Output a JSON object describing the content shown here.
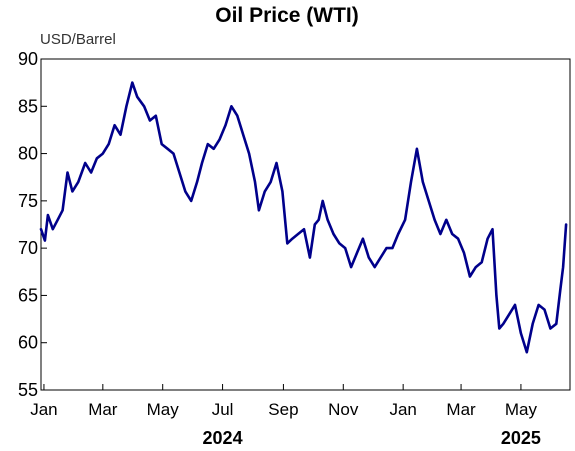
{
  "chart_data": {
    "type": "line",
    "title": "Oil Price (WTI)",
    "ylabel": "USD/Barrel",
    "xlabel": "",
    "ylim": [
      55,
      90
    ],
    "yticks": [
      "55",
      "60",
      "65",
      "70",
      "75",
      "80",
      "85",
      "90"
    ],
    "xlim": [
      "2023-12-29",
      "2025-06-20"
    ],
    "x_tick_labels": [
      {
        "label": "Jan",
        "date": "2024-01-01"
      },
      {
        "label": "Mar",
        "date": "2024-03-01"
      },
      {
        "label": "May",
        "date": "2024-05-01"
      },
      {
        "label": "Jul",
        "date": "2024-07-01"
      },
      {
        "label": "Sep",
        "date": "2024-09-01"
      },
      {
        "label": "Nov",
        "date": "2024-11-01"
      },
      {
        "label": "Jan",
        "date": "2025-01-01"
      },
      {
        "label": "Mar",
        "date": "2025-03-01"
      },
      {
        "label": "May",
        "date": "2025-05-01"
      }
    ],
    "year_labels": [
      {
        "label": "2024",
        "date": "2024-07-01"
      },
      {
        "label": "2025",
        "date": "2025-05-01"
      }
    ],
    "grid": false,
    "line_color": "#00008B",
    "series": [
      {
        "x": [
          "2023-12-29",
          "2024-01-02",
          "2024-01-05",
          "2024-01-10",
          "2024-01-15",
          "2024-01-20",
          "2024-01-25",
          "2024-01-30",
          "2024-02-05",
          "2024-02-12",
          "2024-02-18",
          "2024-02-24",
          "2024-03-01",
          "2024-03-07",
          "2024-03-13",
          "2024-03-19",
          "2024-03-25",
          "2024-03-31",
          "2024-04-05",
          "2024-04-12",
          "2024-04-18",
          "2024-04-24",
          "2024-04-30",
          "2024-05-06",
          "2024-05-12",
          "2024-05-18",
          "2024-05-24",
          "2024-05-30",
          "2024-06-05",
          "2024-06-10",
          "2024-06-16",
          "2024-06-22",
          "2024-06-28",
          "2024-07-04",
          "2024-07-10",
          "2024-07-16",
          "2024-07-22",
          "2024-07-28",
          "2024-08-03",
          "2024-08-07",
          "2024-08-13",
          "2024-08-19",
          "2024-08-25",
          "2024-08-31",
          "2024-09-05",
          "2024-09-10",
          "2024-09-16",
          "2024-09-22",
          "2024-09-28",
          "2024-10-03",
          "2024-10-07",
          "2024-10-11",
          "2024-10-16",
          "2024-10-22",
          "2024-10-28",
          "2024-11-03",
          "2024-11-09",
          "2024-11-15",
          "2024-11-21",
          "2024-11-27",
          "2024-12-03",
          "2024-12-09",
          "2024-12-15",
          "2024-12-21",
          "2024-12-27",
          "2025-01-03",
          "2025-01-09",
          "2025-01-15",
          "2025-01-21",
          "2025-01-27",
          "2025-02-02",
          "2025-02-08",
          "2025-02-14",
          "2025-02-20",
          "2025-02-26",
          "2025-03-04",
          "2025-03-10",
          "2025-03-16",
          "2025-03-22",
          "2025-03-28",
          "2025-04-02",
          "2025-04-06",
          "2025-04-09",
          "2025-04-13",
          "2025-04-19",
          "2025-04-25",
          "2025-05-01",
          "2025-05-07",
          "2025-05-13",
          "2025-05-19",
          "2025-05-25",
          "2025-05-31",
          "2025-06-06",
          "2025-06-10",
          "2025-06-13",
          "2025-06-16"
        ],
        "values": [
          72,
          70.8,
          73.5,
          72,
          73,
          74,
          78,
          76,
          77,
          79,
          78,
          79.5,
          80,
          81,
          83,
          82,
          85,
          87.5,
          86,
          85,
          83.5,
          84,
          81,
          80.5,
          80,
          78,
          76,
          75,
          77,
          79,
          81,
          80.5,
          81.5,
          83,
          85,
          84,
          82,
          80,
          77,
          74,
          76,
          77,
          79,
          76,
          70.5,
          71,
          71.5,
          72,
          69,
          72.5,
          73,
          75,
          73,
          71.5,
          70.5,
          70,
          68,
          69.5,
          71,
          69,
          68,
          69,
          70,
          70,
          71.5,
          73,
          77,
          80.5,
          77,
          75,
          73,
          71.5,
          73,
          71.5,
          71,
          69.5,
          67,
          68,
          68.5,
          71,
          72,
          65,
          61.5,
          62,
          63,
          64,
          61,
          59,
          62,
          64,
          63.5,
          61.5,
          62,
          65.5,
          68,
          72.5
        ]
      }
    ]
  }
}
